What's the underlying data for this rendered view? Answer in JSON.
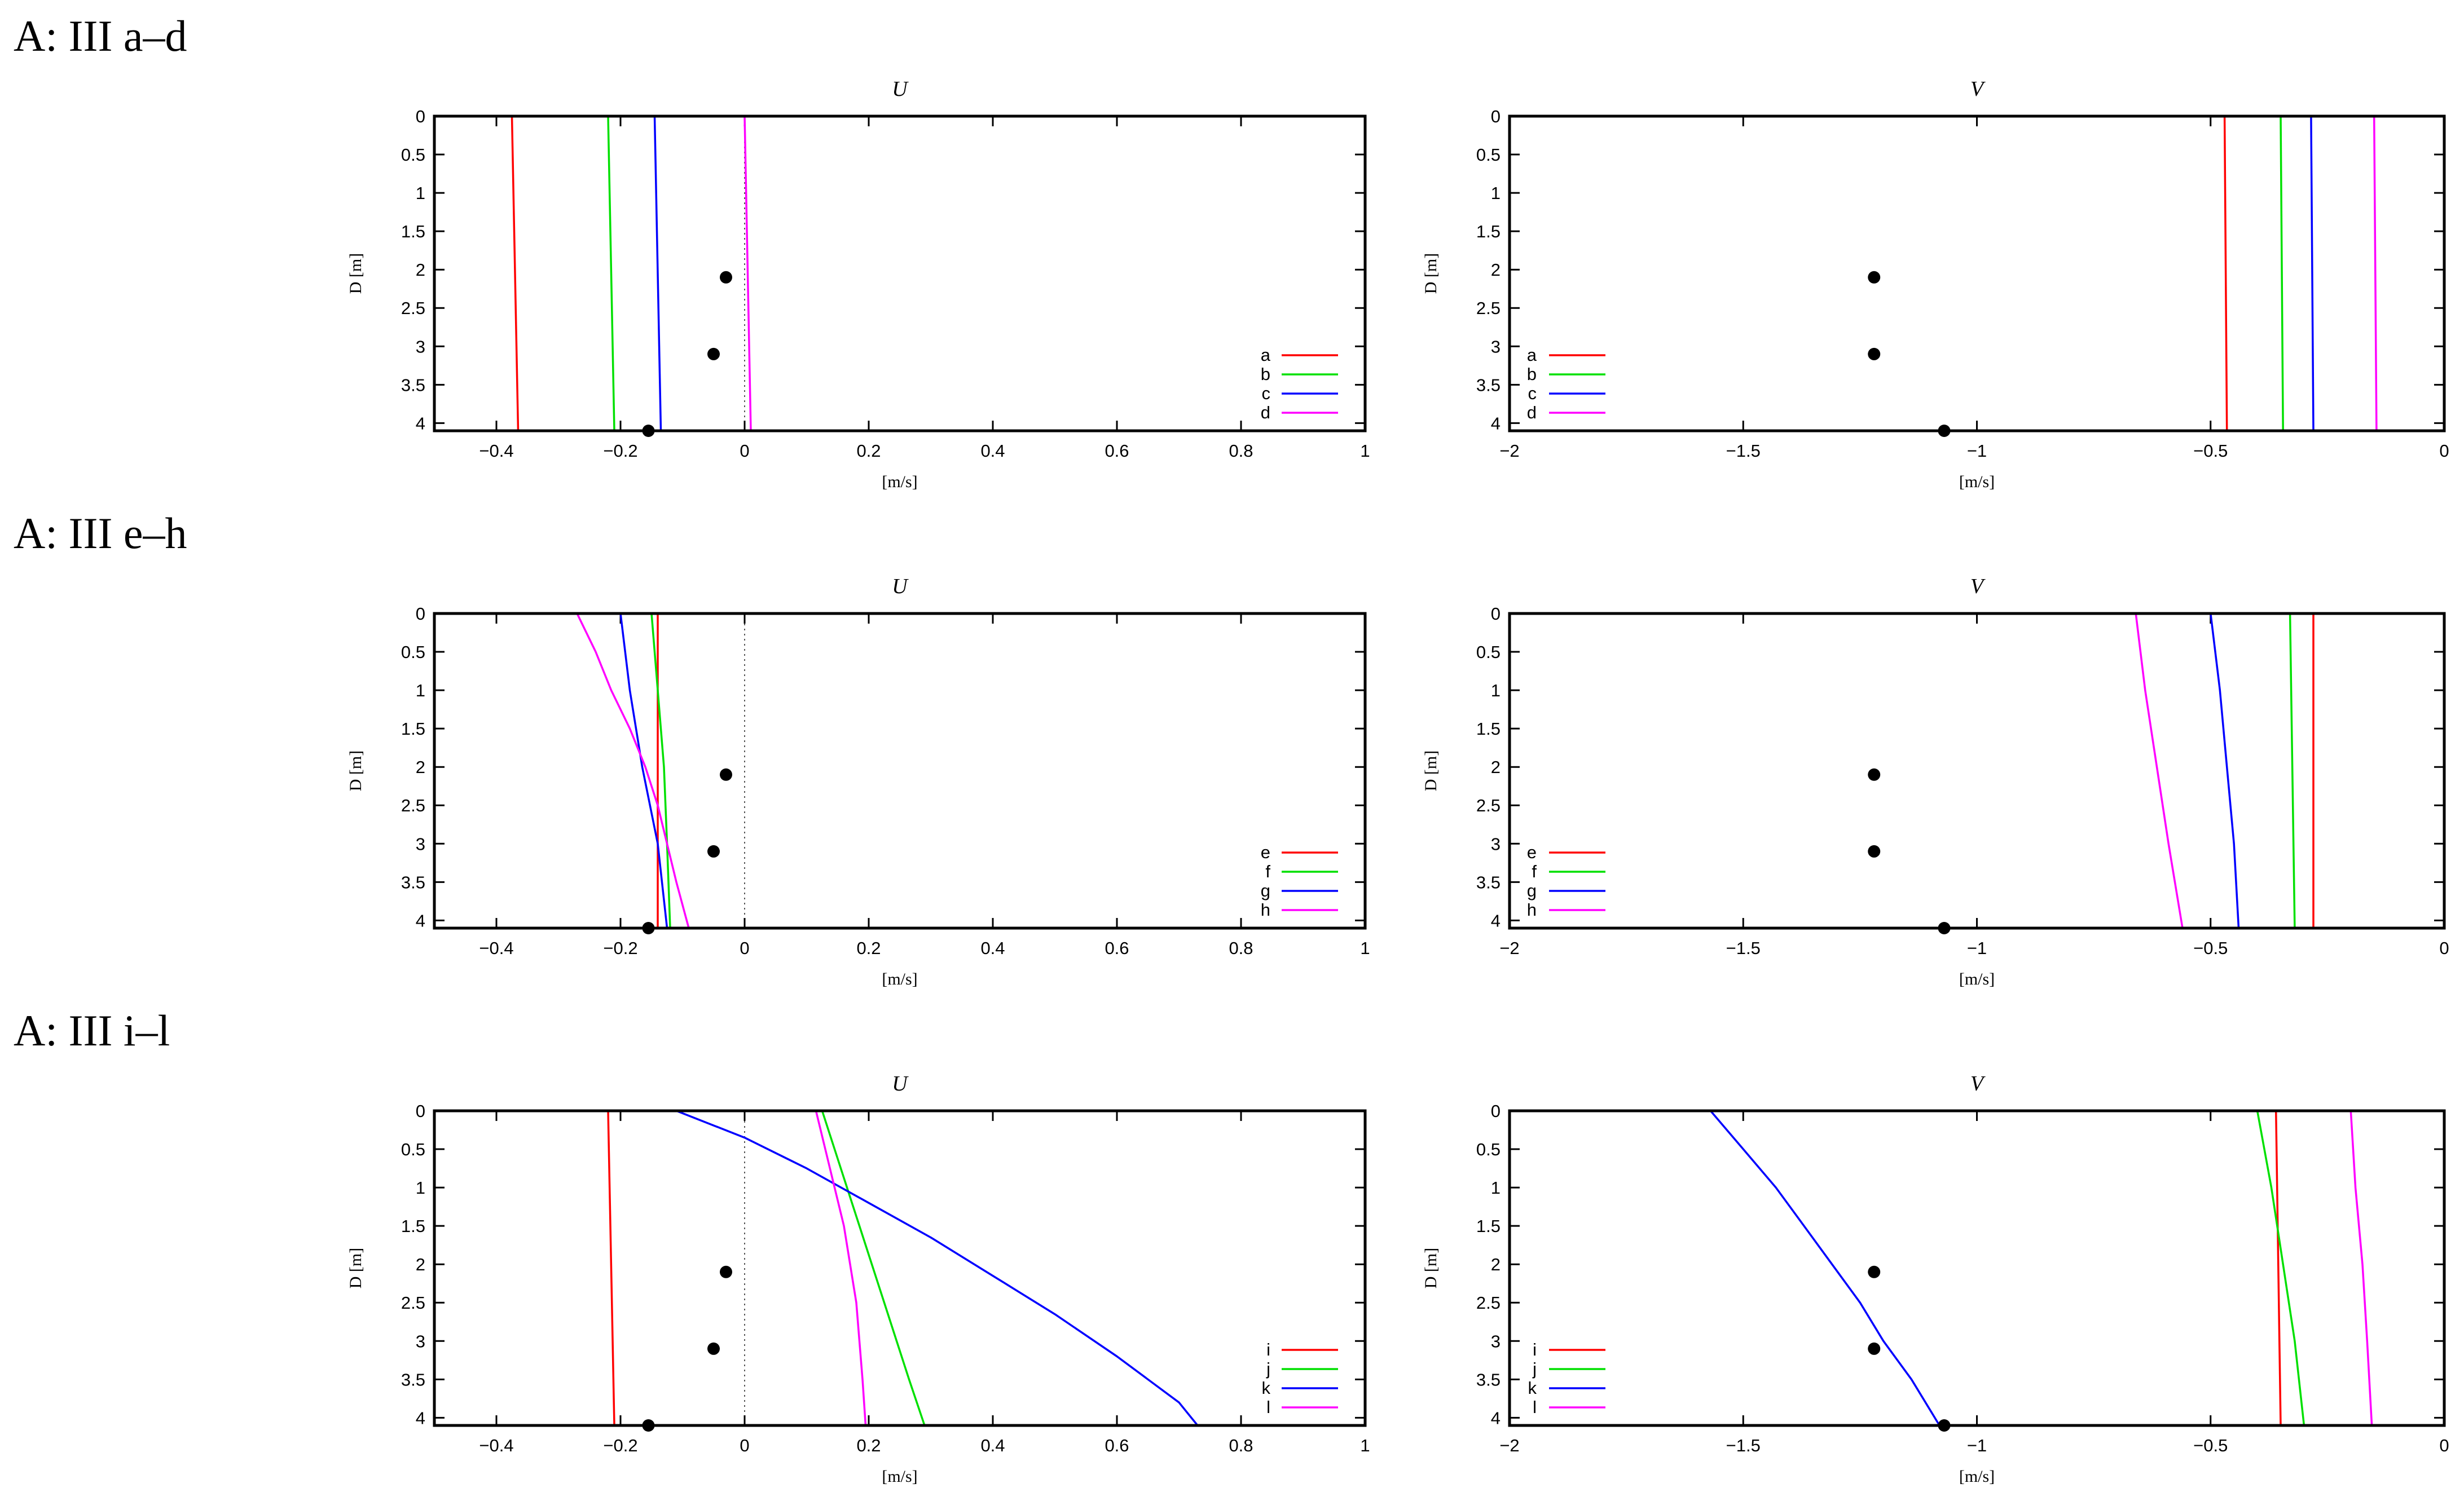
{
  "sections": [
    {
      "label": "A: III a–d"
    },
    {
      "label": "A: III e–h"
    },
    {
      "label": "A: III i–l"
    }
  ],
  "chart_data": [
    {
      "type": "line",
      "row": 0,
      "title": "U",
      "xlabel": "[m/s]",
      "ylabel": "D [m]",
      "xlim": [
        -0.5,
        1
      ],
      "ylim": [
        0,
        4.1
      ],
      "xticks": [
        -0.4,
        -0.2,
        0,
        0.2,
        0.4,
        0.6,
        0.8,
        1
      ],
      "xtick_labels": [
        "−0.4",
        "−0.2",
        "0",
        "0.2",
        "0.4",
        "0.6",
        "0.8",
        "1"
      ],
      "yticks": [
        0,
        0.5,
        1,
        1.5,
        2,
        2.5,
        3,
        3.5,
        4
      ],
      "ytick_labels": [
        "0",
        "0.5",
        "1",
        "1.5",
        "2",
        "2.5",
        "3",
        "3.5",
        "4"
      ],
      "y_inverted": true,
      "zero_line": true,
      "legend_position": "bottom-right",
      "series": [
        {
          "name": "a",
          "color": "#ff0000",
          "points": [
            [
              -0.375,
              0
            ],
            [
              -0.365,
              4.1
            ]
          ]
        },
        {
          "name": "b",
          "color": "#00e000",
          "points": [
            [
              -0.22,
              0
            ],
            [
              -0.21,
              4.1
            ]
          ]
        },
        {
          "name": "c",
          "color": "#0000ff",
          "points": [
            [
              -0.145,
              0
            ],
            [
              -0.135,
              4.1
            ]
          ]
        },
        {
          "name": "d",
          "color": "#ff00ff",
          "points": [
            [
              0,
              0
            ],
            [
              0.01,
              4.1
            ]
          ]
        }
      ],
      "observations": [
        [
          -0.03,
          2.1
        ],
        [
          -0.05,
          3.1
        ],
        [
          -0.155,
          4.1
        ]
      ]
    },
    {
      "type": "line",
      "row": 0,
      "title": "V",
      "xlabel": "[m/s]",
      "ylabel": "D [m]",
      "xlim": [
        -2,
        0
      ],
      "ylim": [
        0,
        4.1
      ],
      "xticks": [
        -2,
        -1.5,
        -1,
        -0.5,
        0
      ],
      "xtick_labels": [
        "−2",
        "−1.5",
        "−1",
        "−0.5",
        "0"
      ],
      "yticks": [
        0,
        0.5,
        1,
        1.5,
        2,
        2.5,
        3,
        3.5,
        4
      ],
      "ytick_labels": [
        "0",
        "0.5",
        "1",
        "1.5",
        "2",
        "2.5",
        "3",
        "3.5",
        "4"
      ],
      "y_inverted": true,
      "zero_line": false,
      "legend_position": "bottom-left",
      "series": [
        {
          "name": "a",
          "color": "#ff0000",
          "points": [
            [
              -0.47,
              0
            ],
            [
              -0.465,
              4.1
            ]
          ]
        },
        {
          "name": "b",
          "color": "#00e000",
          "points": [
            [
              -0.35,
              0
            ],
            [
              -0.345,
              4.1
            ]
          ]
        },
        {
          "name": "c",
          "color": "#0000ff",
          "points": [
            [
              -0.285,
              0
            ],
            [
              -0.28,
              4.1
            ]
          ]
        },
        {
          "name": "d",
          "color": "#ff00ff",
          "points": [
            [
              -0.15,
              0
            ],
            [
              -0.145,
              4.1
            ]
          ]
        }
      ],
      "observations": [
        [
          -1.22,
          2.1
        ],
        [
          -1.22,
          3.1
        ],
        [
          -1.07,
          4.1
        ]
      ]
    },
    {
      "type": "line",
      "row": 1,
      "title": "U",
      "xlabel": "[m/s]",
      "ylabel": "D [m]",
      "xlim": [
        -0.5,
        1
      ],
      "ylim": [
        0,
        4.1
      ],
      "xticks": [
        -0.4,
        -0.2,
        0,
        0.2,
        0.4,
        0.6,
        0.8,
        1
      ],
      "xtick_labels": [
        "−0.4",
        "−0.2",
        "0",
        "0.2",
        "0.4",
        "0.6",
        "0.8",
        "1"
      ],
      "yticks": [
        0,
        0.5,
        1,
        1.5,
        2,
        2.5,
        3,
        3.5,
        4
      ],
      "ytick_labels": [
        "0",
        "0.5",
        "1",
        "1.5",
        "2",
        "2.5",
        "3",
        "3.5",
        "4"
      ],
      "y_inverted": true,
      "zero_line": true,
      "legend_position": "bottom-right",
      "series": [
        {
          "name": "e",
          "color": "#ff0000",
          "points": [
            [
              -0.14,
              0
            ],
            [
              -0.14,
              4.1
            ]
          ]
        },
        {
          "name": "f",
          "color": "#00e000",
          "points": [
            [
              -0.15,
              0
            ],
            [
              -0.14,
              1.0
            ],
            [
              -0.13,
              2.0
            ],
            [
              -0.125,
              3.0
            ],
            [
              -0.12,
              4.1
            ]
          ]
        },
        {
          "name": "g",
          "color": "#0000ff",
          "points": [
            [
              -0.2,
              0
            ],
            [
              -0.185,
              1.0
            ],
            [
              -0.165,
              2.0
            ],
            [
              -0.14,
              3.0
            ],
            [
              -0.125,
              4.1
            ]
          ]
        },
        {
          "name": "h",
          "color": "#ff00ff",
          "points": [
            [
              -0.27,
              0
            ],
            [
              -0.24,
              0.5
            ],
            [
              -0.215,
              1.0
            ],
            [
              -0.185,
              1.5
            ],
            [
              -0.16,
              2.0
            ],
            [
              -0.14,
              2.5
            ],
            [
              -0.125,
              3.0
            ],
            [
              -0.11,
              3.5
            ],
            [
              -0.09,
              4.1
            ]
          ]
        }
      ],
      "observations": [
        [
          -0.03,
          2.1
        ],
        [
          -0.05,
          3.1
        ],
        [
          -0.155,
          4.1
        ]
      ]
    },
    {
      "type": "line",
      "row": 1,
      "title": "V",
      "xlabel": "[m/s]",
      "ylabel": "D [m]",
      "xlim": [
        -2,
        0
      ],
      "ylim": [
        0,
        4.1
      ],
      "xticks": [
        -2,
        -1.5,
        -1,
        -0.5,
        0
      ],
      "xtick_labels": [
        "−2",
        "−1.5",
        "−1",
        "−0.5",
        "0"
      ],
      "yticks": [
        0,
        0.5,
        1,
        1.5,
        2,
        2.5,
        3,
        3.5,
        4
      ],
      "ytick_labels": [
        "0",
        "0.5",
        "1",
        "1.5",
        "2",
        "2.5",
        "3",
        "3.5",
        "4"
      ],
      "y_inverted": true,
      "zero_line": false,
      "legend_position": "bottom-left",
      "series": [
        {
          "name": "e",
          "color": "#ff0000",
          "points": [
            [
              -0.28,
              0
            ],
            [
              -0.28,
              4.1
            ]
          ]
        },
        {
          "name": "f",
          "color": "#00e000",
          "points": [
            [
              -0.33,
              0
            ],
            [
              -0.32,
              4.1
            ]
          ]
        },
        {
          "name": "g",
          "color": "#0000ff",
          "points": [
            [
              -0.5,
              0
            ],
            [
              -0.48,
              1.0
            ],
            [
              -0.465,
              2.0
            ],
            [
              -0.45,
              3.0
            ],
            [
              -0.44,
              4.1
            ]
          ]
        },
        {
          "name": "h",
          "color": "#ff00ff",
          "points": [
            [
              -0.66,
              0
            ],
            [
              -0.64,
              1.0
            ],
            [
              -0.615,
              2.0
            ],
            [
              -0.59,
              3.0
            ],
            [
              -0.56,
              4.1
            ]
          ]
        }
      ],
      "observations": [
        [
          -1.22,
          2.1
        ],
        [
          -1.22,
          3.1
        ],
        [
          -1.07,
          4.1
        ]
      ]
    },
    {
      "type": "line",
      "row": 2,
      "title": "U",
      "xlabel": "[m/s]",
      "ylabel": "D [m]",
      "xlim": [
        -0.5,
        1
      ],
      "ylim": [
        0,
        4.1
      ],
      "xticks": [
        -0.4,
        -0.2,
        0,
        0.2,
        0.4,
        0.6,
        0.8,
        1
      ],
      "xtick_labels": [
        "−0.4",
        "−0.2",
        "0",
        "0.2",
        "0.4",
        "0.6",
        "0.8",
        "1"
      ],
      "yticks": [
        0,
        0.5,
        1,
        1.5,
        2,
        2.5,
        3,
        3.5,
        4
      ],
      "ytick_labels": [
        "0",
        "0.5",
        "1",
        "1.5",
        "2",
        "2.5",
        "3",
        "3.5",
        "4"
      ],
      "y_inverted": true,
      "zero_line": true,
      "legend_position": "bottom-right",
      "series": [
        {
          "name": "i",
          "color": "#ff0000",
          "points": [
            [
              -0.22,
              0
            ],
            [
              -0.21,
              4.1
            ]
          ]
        },
        {
          "name": "j",
          "color": "#00e000",
          "points": [
            [
              0.125,
              0
            ],
            [
              0.145,
              0.5
            ],
            [
              0.165,
              1.0
            ],
            [
              0.185,
              1.5
            ],
            [
              0.205,
              2.0
            ],
            [
              0.225,
              2.5
            ],
            [
              0.245,
              3.0
            ],
            [
              0.265,
              3.5
            ],
            [
              0.29,
              4.1
            ]
          ]
        },
        {
          "name": "k",
          "color": "#0000ff",
          "points": [
            [
              -0.11,
              0
            ],
            [
              0.0,
              0.35
            ],
            [
              0.1,
              0.75
            ],
            [
              0.2,
              1.2
            ],
            [
              0.3,
              1.65
            ],
            [
              0.4,
              2.15
            ],
            [
              0.5,
              2.65
            ],
            [
              0.6,
              3.2
            ],
            [
              0.7,
              3.8
            ],
            [
              0.73,
              4.1
            ]
          ]
        },
        {
          "name": "l",
          "color": "#ff00ff",
          "points": [
            [
              0.115,
              0
            ],
            [
              0.13,
              0.5
            ],
            [
              0.145,
              1.0
            ],
            [
              0.16,
              1.5
            ],
            [
              0.17,
              2.0
            ],
            [
              0.18,
              2.5
            ],
            [
              0.185,
              3.0
            ],
            [
              0.19,
              3.5
            ],
            [
              0.195,
              4.1
            ]
          ]
        }
      ],
      "observations": [
        [
          -0.03,
          2.1
        ],
        [
          -0.05,
          3.1
        ],
        [
          -0.155,
          4.1
        ]
      ]
    },
    {
      "type": "line",
      "row": 2,
      "title": "V",
      "xlabel": "[m/s]",
      "ylabel": "D [m]",
      "xlim": [
        -2,
        0
      ],
      "ylim": [
        0,
        4.1
      ],
      "xticks": [
        -2,
        -1.5,
        -1,
        -0.5,
        0
      ],
      "xtick_labels": [
        "−2",
        "−1.5",
        "−1",
        "−0.5",
        "0"
      ],
      "yticks": [
        0,
        0.5,
        1,
        1.5,
        2,
        2.5,
        3,
        3.5,
        4
      ],
      "ytick_labels": [
        "0",
        "0.5",
        "1",
        "1.5",
        "2",
        "2.5",
        "3",
        "3.5",
        "4"
      ],
      "y_inverted": true,
      "zero_line": false,
      "legend_position": "bottom-left",
      "series": [
        {
          "name": "i",
          "color": "#ff0000",
          "points": [
            [
              -0.36,
              0
            ],
            [
              -0.35,
              4.1
            ]
          ]
        },
        {
          "name": "j",
          "color": "#00e000",
          "points": [
            [
              -0.4,
              0
            ],
            [
              -0.37,
              1.0
            ],
            [
              -0.345,
              2.0
            ],
            [
              -0.32,
              3.0
            ],
            [
              -0.3,
              4.1
            ]
          ]
        },
        {
          "name": "k",
          "color": "#0000ff",
          "points": [
            [
              -1.57,
              0
            ],
            [
              -1.5,
              0.5
            ],
            [
              -1.43,
              1.0
            ],
            [
              -1.37,
              1.5
            ],
            [
              -1.31,
              2.0
            ],
            [
              -1.25,
              2.5
            ],
            [
              -1.2,
              3.0
            ],
            [
              -1.14,
              3.5
            ],
            [
              -1.08,
              4.1
            ]
          ]
        },
        {
          "name": "l",
          "color": "#ff00ff",
          "points": [
            [
              -0.2,
              0
            ],
            [
              -0.19,
              1.0
            ],
            [
              -0.175,
              2.0
            ],
            [
              -0.165,
              3.0
            ],
            [
              -0.155,
              4.1
            ]
          ]
        }
      ],
      "observations": [
        [
          -1.22,
          2.1
        ],
        [
          -1.22,
          3.1
        ],
        [
          -1.07,
          4.1
        ]
      ]
    }
  ]
}
